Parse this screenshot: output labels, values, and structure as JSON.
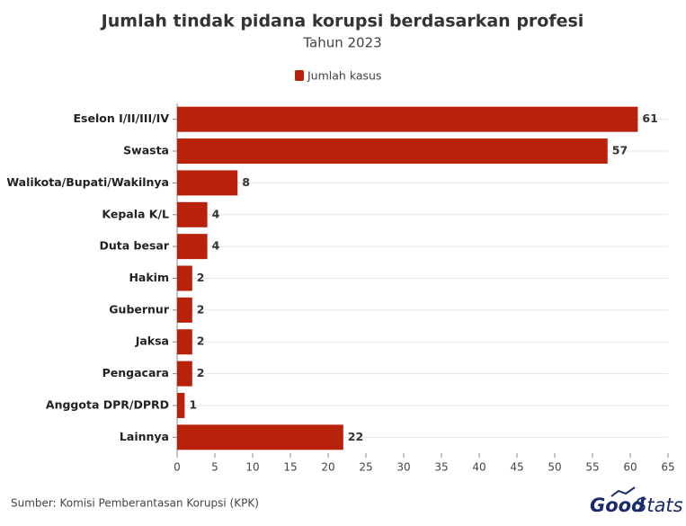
{
  "chart_data": {
    "type": "bar",
    "orientation": "horizontal",
    "title": "Jumlah tindak pidana korupsi berdasarkan profesi",
    "subtitle": "Tahun 2023",
    "categories": [
      "Eselon I/II/III/IV",
      "Swasta",
      "Walikota/Bupati/Wakilnya",
      "Kepala K/L",
      "Duta besar",
      "Hakim",
      "Gubernur",
      "Jaksa",
      "Pengacara",
      "Anggota DPR/DPRD",
      "Lainnya"
    ],
    "series": [
      {
        "name": "Jumlah kasus",
        "color": "#b8220a",
        "values": [
          61,
          57,
          8,
          4,
          4,
          2,
          2,
          2,
          2,
          1,
          22
        ]
      }
    ],
    "xlim": [
      0,
      65
    ],
    "xticks": [
      0,
      5,
      10,
      15,
      20,
      25,
      30,
      35,
      40,
      45,
      50,
      55,
      60,
      65
    ],
    "legend": "top",
    "source": "Sumber: Komisi Pemberantasan Korupsi (KPK)",
    "brand": [
      "Good",
      "Stats"
    ]
  }
}
